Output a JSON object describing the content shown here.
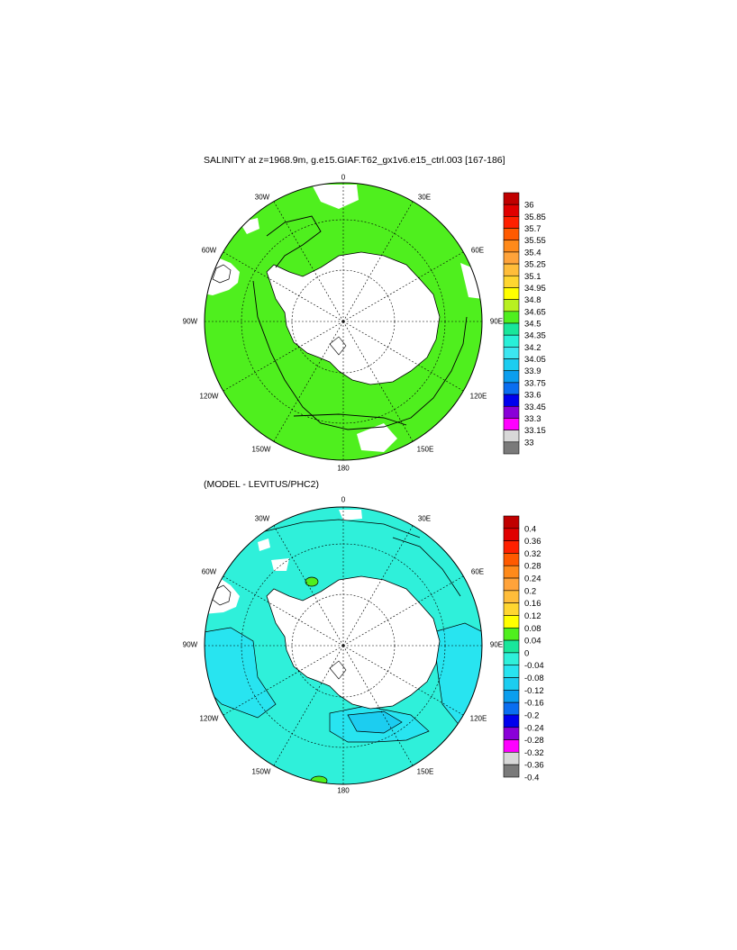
{
  "panels": [
    {
      "title": "SALINITY at z=1968.9m, g.e15.GIAF.T62_gx1v6.e15_ctrl.003 [167-186]",
      "lon_labels": {
        "n": "0",
        "ne30": "30E",
        "ne60": "60E",
        "e90": "90E",
        "se120": "120E",
        "se150": "150E",
        "s": "180",
        "sw150": "150W",
        "sw120": "120W",
        "w90": "90W",
        "nw60": "60W",
        "nw30": "30W"
      },
      "ocean_color": "#4fef1e",
      "colorbar": {
        "levels": [
          "36",
          "35.85",
          "35.7",
          "35.55",
          "35.4",
          "35.25",
          "35.1",
          "34.95",
          "34.8",
          "34.65",
          "34.5",
          "34.35",
          "34.2",
          "34.05",
          "33.9",
          "33.75",
          "33.6",
          "33.45",
          "33.3",
          "33.15",
          "33"
        ],
        "colors": [
          "#c00000",
          "#e00000",
          "#ff2000",
          "#ff5a00",
          "#ff8a1a",
          "#ffa33a",
          "#ffbd3a",
          "#ffd630",
          "#ffff00",
          "#b8f020",
          "#4fef1e",
          "#19e69b",
          "#28f0d8",
          "#3ce6f0",
          "#1ccdf0",
          "#0b9eee",
          "#0a6ef0",
          "#0000ee",
          "#8a00d8",
          "#ff00ff",
          "#d8d8d8",
          "#7a7a7a"
        ]
      }
    },
    {
      "title": "(MODEL - LEVITUS/PHC2)",
      "lon_labels": {
        "n": "0",
        "ne30": "30E",
        "ne60": "60E",
        "e90": "90E",
        "se120": "120E",
        "se150": "150E",
        "s": "180",
        "sw150": "150W",
        "sw120": "120W",
        "w90": "90W",
        "nw60": "60W",
        "nw30": "30W"
      },
      "ocean_color": "#2ff0da",
      "colorbar": {
        "levels": [
          "0.4",
          "0.36",
          "0.32",
          "0.28",
          "0.24",
          "0.2",
          "0.16",
          "0.12",
          "0.08",
          "0.04",
          "0",
          "-0.04",
          "-0.08",
          "-0.12",
          "-0.16",
          "-0.2",
          "-0.24",
          "-0.28",
          "-0.32",
          "-0.36",
          "-0.4"
        ],
        "colors": [
          "#c00000",
          "#e00000",
          "#ff2000",
          "#ff5a00",
          "#ff8a1a",
          "#ffa33a",
          "#ffbd3a",
          "#ffd630",
          "#ffff00",
          "#4fef1e",
          "#19e69b",
          "#2ff0da",
          "#28e4f0",
          "#1ccdf0",
          "#0b9eee",
          "#0a6ef0",
          "#0000ee",
          "#8a00d8",
          "#ff00ff",
          "#d8d8d8",
          "#7a7a7a"
        ]
      }
    }
  ]
}
